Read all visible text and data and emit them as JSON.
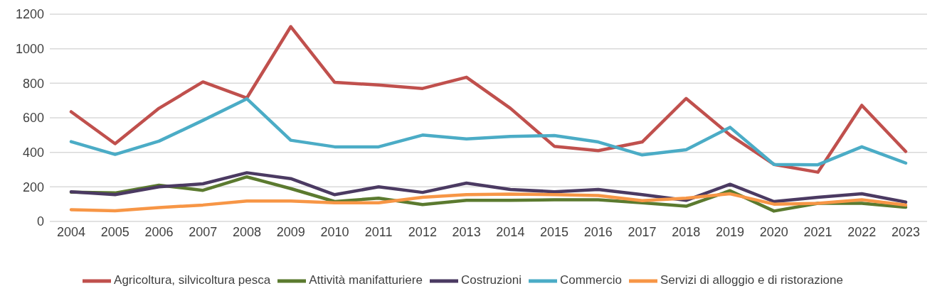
{
  "chart_data": {
    "type": "line",
    "categories": [
      "2004",
      "2005",
      "2006",
      "2007",
      "2008",
      "2009",
      "2010",
      "2011",
      "2012",
      "2013",
      "2014",
      "2015",
      "2016",
      "2017",
      "2018",
      "2019",
      "2020",
      "2021",
      "2022",
      "2023"
    ],
    "series": [
      {
        "name": "Agricoltura, silvicoltura pesca",
        "color": "#c0504d",
        "values": [
          635,
          450,
          655,
          808,
          715,
          1128,
          805,
          790,
          770,
          835,
          655,
          435,
          410,
          460,
          712,
          500,
          330,
          285,
          672,
          405
        ]
      },
      {
        "name": "Attività manifatturiere",
        "color": "#5b7a2f",
        "values": [
          170,
          165,
          210,
          180,
          258,
          190,
          115,
          135,
          98,
          122,
          122,
          125,
          125,
          108,
          88,
          178,
          60,
          105,
          105,
          82
        ]
      },
      {
        "name": "Costruzioni",
        "color": "#4b3a62",
        "values": [
          172,
          155,
          200,
          218,
          282,
          248,
          155,
          200,
          168,
          222,
          185,
          172,
          185,
          155,
          122,
          215,
          115,
          140,
          160,
          112
        ]
      },
      {
        "name": "Commercio",
        "color": "#4bacc6",
        "values": [
          462,
          388,
          465,
          585,
          710,
          470,
          432,
          432,
          500,
          478,
          492,
          497,
          460,
          385,
          415,
          545,
          330,
          328,
          432,
          338
        ]
      },
      {
        "name": "Servizi di alloggio e di ristorazione",
        "color": "#f79646",
        "values": [
          68,
          62,
          80,
          95,
          118,
          118,
          108,
          108,
          140,
          155,
          158,
          155,
          150,
          120,
          135,
          160,
          100,
          105,
          125,
          95
        ]
      }
    ],
    "ylim": [
      0,
      1200
    ],
    "yticks": [
      0,
      200,
      400,
      600,
      800,
      1000,
      1200
    ],
    "grid": "y",
    "legend": "bottom",
    "marker": "none",
    "line_style": "solid"
  }
}
